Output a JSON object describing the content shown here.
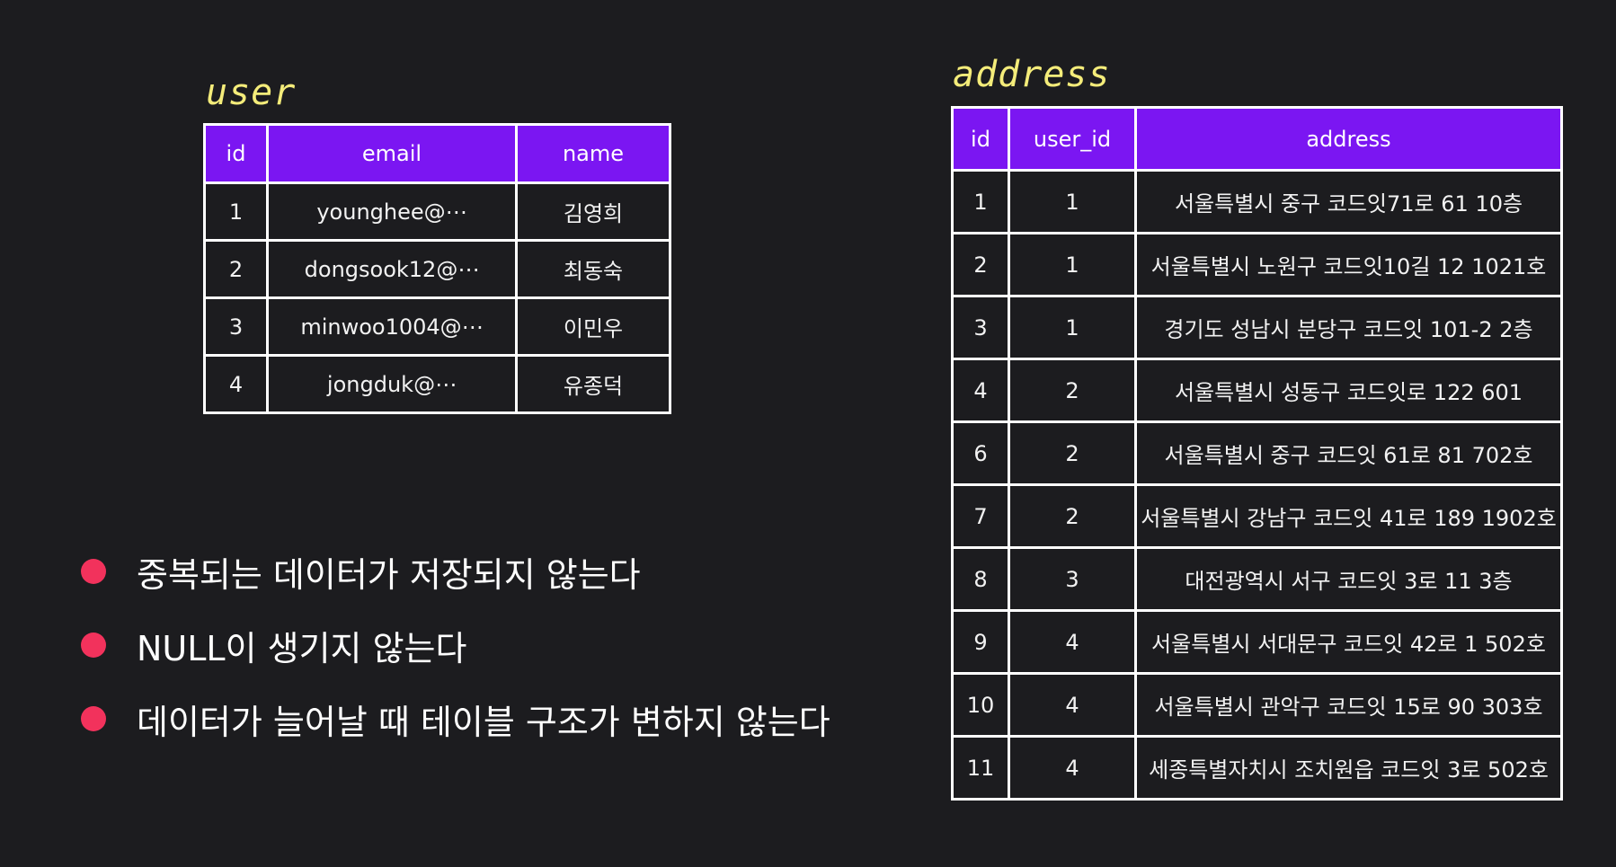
{
  "user_table": {
    "title": "user",
    "columns": [
      "id",
      "email",
      "name"
    ],
    "rows": [
      [
        "1",
        "younghee@⋯",
        "김영희"
      ],
      [
        "2",
        "dongsook12@⋯",
        "최동숙"
      ],
      [
        "3",
        "minwoo1004@⋯",
        "이민우"
      ],
      [
        "4",
        "jongduk@⋯",
        "유종덕"
      ]
    ]
  },
  "address_table": {
    "title": "address",
    "columns": [
      "id",
      "user_id",
      "address"
    ],
    "rows": [
      [
        "1",
        "1",
        "서울특별시 중구 코드잇71로 61 10층"
      ],
      [
        "2",
        "1",
        "서울특별시 노원구 코드잇10길 12 1021호"
      ],
      [
        "3",
        "1",
        "경기도 성남시 분당구 코드잇 101-2 2층"
      ],
      [
        "4",
        "2",
        "서울특별시 성동구 코드잇로 122 601"
      ],
      [
        "6",
        "2",
        "서울특별시 중구 코드잇 61로 81 702호"
      ],
      [
        "7",
        "2",
        "서울특별시 강남구 코드잇 41로 189 1902호"
      ],
      [
        "8",
        "3",
        "대전광역시 서구 코드잇 3로 11 3층"
      ],
      [
        "9",
        "4",
        "서울특별시 서대문구 코드잇 42로 1 502호"
      ],
      [
        "10",
        "4",
        "서울특별시 관악구 코드잇 15로 90 303호"
      ],
      [
        "11",
        "4",
        "세종특별자치시 조치원읍 코드잇 3로 502호"
      ]
    ]
  },
  "bullets": [
    "중복되는 데이터가 저장되지 않는다",
    "NULL이 생기지 않는다",
    "데이터가 늘어날 때 테이블 구조가 변하지 않는다"
  ],
  "colors": {
    "background": "#1c1c1f",
    "header_fill": "#7b16f2",
    "title": "#f4ec7a",
    "bullet_dot": "#f2325c"
  }
}
